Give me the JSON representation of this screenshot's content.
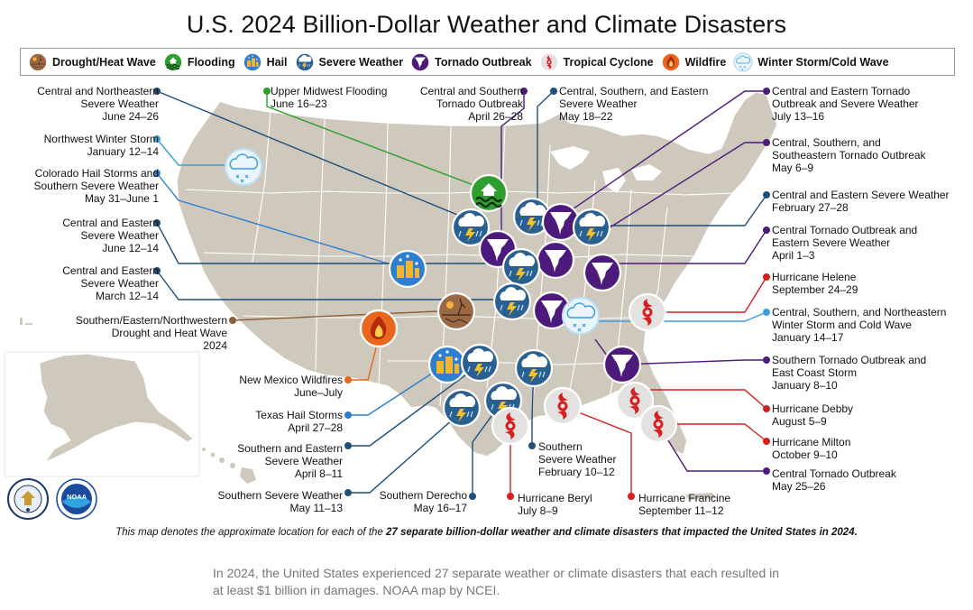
{
  "title": "U.S. 2024 Billion-Dollar Weather and Climate Disasters",
  "legend": [
    {
      "label": "Drought/Heat Wave",
      "icon": "drought-icon"
    },
    {
      "label": "Flooding",
      "icon": "flood-icon"
    },
    {
      "label": "Hail",
      "icon": "hail-icon"
    },
    {
      "label": "Severe Weather",
      "icon": "severe-weather-icon"
    },
    {
      "label": "Tornado Outbreak",
      "icon": "tornado-icon"
    },
    {
      "label": "Tropical Cyclone",
      "icon": "tropical-cyclone-icon"
    },
    {
      "label": "Wildfire",
      "icon": "wildfire-icon"
    },
    {
      "label": "Winter Storm/Cold Wave",
      "icon": "winter-storm-icon"
    }
  ],
  "colors": {
    "drought": "#8b5e3c",
    "flooding": "#2e9e2e",
    "hail": "#2f7fd0",
    "severe": "#1f4e79",
    "tornado": "#4b1a7a",
    "tropical": "#d42020",
    "wildfire": "#e8661e",
    "winter": "#3aa0d8",
    "land": "#cfc8bd",
    "state_border": "#ffffff"
  },
  "events": [
    {
      "lines": [
        "Central and Northeastern",
        "Severe Weather",
        "June 24–26"
      ],
      "type": "severe"
    },
    {
      "lines": [
        "Upper Midwest Flooding",
        "June 16–23"
      ],
      "type": "flooding"
    },
    {
      "lines": [
        "Central and Southern",
        "Tornado Outbreak",
        "April 26–28"
      ],
      "type": "tornado"
    },
    {
      "lines": [
        "Central, Southern, and Eastern",
        "Severe Weather",
        "May 18–22"
      ],
      "type": "severe"
    },
    {
      "lines": [
        "Central and Eastern Tornado",
        "Outbreak and Severe Weather",
        "July 13–16"
      ],
      "type": "tornado"
    },
    {
      "lines": [
        "Northwest Winter Storm",
        "January 12–14"
      ],
      "type": "winter"
    },
    {
      "lines": [
        "Central, Southern, and",
        "Southeastern Tornado Outbreak",
        "May 6–9"
      ],
      "type": "tornado"
    },
    {
      "lines": [
        "Colorado Hail Storms and",
        "Southern Severe Weather",
        "May 31–June 1"
      ],
      "type": "hail"
    },
    {
      "lines": [
        "Central and Eastern Severe Weather",
        "February 27–28"
      ],
      "type": "severe"
    },
    {
      "lines": [
        "Central and Eastern",
        "Severe Weather",
        "June 12–14"
      ],
      "type": "severe"
    },
    {
      "lines": [
        "Central Tornado Outbreak and",
        "Eastern Severe Weather",
        "April 1–3"
      ],
      "type": "tornado"
    },
    {
      "lines": [
        "Central and Eastern",
        "Severe Weather",
        "March 12–14"
      ],
      "type": "severe"
    },
    {
      "lines": [
        "Hurricane Helene",
        "September 24–29"
      ],
      "type": "tropical"
    },
    {
      "lines": [
        "Southern/Eastern/Northwestern",
        "Drought and Heat Wave",
        "2024"
      ],
      "type": "drought"
    },
    {
      "lines": [
        "Central, Southern, and Northeastern",
        "Winter Storm and Cold Wave",
        "January 14–17"
      ],
      "type": "winter"
    },
    {
      "lines": [
        "New Mexico Wildfires",
        "June–July"
      ],
      "type": "wildfire"
    },
    {
      "lines": [
        "Southern Tornado Outbreak and",
        "East Coast Storm",
        "January 8–10"
      ],
      "type": "tornado"
    },
    {
      "lines": [
        "Texas Hail Storms",
        "April 27–28"
      ],
      "type": "hail"
    },
    {
      "lines": [
        "Hurricane Debby",
        "August 5–9"
      ],
      "type": "tropical"
    },
    {
      "lines": [
        "Southern and Eastern",
        "Severe Weather",
        "April 8–11"
      ],
      "type": "severe"
    },
    {
      "lines": [
        "Hurricane Milton",
        "October 9–10"
      ],
      "type": "tropical"
    },
    {
      "lines": [
        "Southern",
        "Severe Weather",
        "February 10–12"
      ],
      "type": "severe"
    },
    {
      "lines": [
        "Central Tornado Outbreak",
        "May 25–26"
      ],
      "type": "tornado"
    },
    {
      "lines": [
        "Southern Severe Weather",
        "May 11–13"
      ],
      "type": "severe"
    },
    {
      "lines": [
        "Southern Derecho",
        "May 16–17"
      ],
      "type": "severe"
    },
    {
      "lines": [
        "Hurricane Beryl",
        "July 8–9"
      ],
      "type": "tropical"
    },
    {
      "lines": [
        "Hurricane Francine",
        "September 11–12"
      ],
      "type": "tropical"
    }
  ],
  "caption_prefix": "This map denotes the approximate location for each of the ",
  "caption_bold": "27 separate billion-dollar weather and climate disasters that impacted the United States in 2024.",
  "note": "In 2024, the United States experienced 27 separate weather or climate disasters that each resulted in at least $1 billion in damages. NOAA map by NCEI.",
  "seals": {
    "doc": "DEPARTMENT OF COMMERCE",
    "noaa": "NOAA"
  }
}
